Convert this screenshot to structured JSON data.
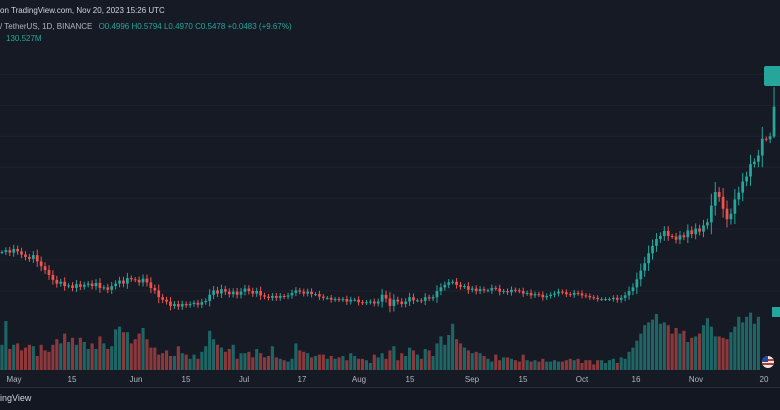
{
  "header": {
    "published": "on TradingView.com, Nov 20, 2023 15:26 UTC",
    "symbol": "/ TetherUS, 1D, BINANCE",
    "ohlc": "O0.4996 H0.5794 L0.4970 C0.5478 +0.0483 (+9.67%)",
    "volume": "130.527M"
  },
  "footer": {
    "brand": "ingView"
  },
  "colors": {
    "up": "#26a69a",
    "down": "#ef5350",
    "background": "#161a25",
    "text": "#b2b5be"
  },
  "chart_data": {
    "type": "candlestick",
    "title": "",
    "x_labels": [
      "May",
      "15",
      "Jun",
      "15",
      "Jul",
      "17",
      "Aug",
      "15",
      "Sep",
      "15",
      "Oct",
      "16",
      "Nov",
      "20"
    ],
    "ylim": [
      0.2,
      0.62
    ],
    "last": {
      "open": 0.4996,
      "high": 0.5794,
      "low": 0.497,
      "close": 0.5478
    },
    "series": [
      {
        "name": "Close",
        "values": [
          0.313,
          0.316,
          0.312,
          0.318,
          0.314,
          0.309,
          0.305,
          0.302,
          0.308,
          0.298,
          0.29,
          0.284,
          0.276,
          0.268,
          0.262,
          0.265,
          0.258,
          0.259,
          0.255,
          0.261,
          0.257,
          0.26,
          0.262,
          0.258,
          0.263,
          0.255,
          0.256,
          0.252,
          0.258,
          0.262,
          0.267,
          0.262,
          0.271,
          0.269,
          0.268,
          0.264,
          0.27,
          0.264,
          0.255,
          0.251,
          0.24,
          0.236,
          0.233,
          0.226,
          0.229,
          0.225,
          0.229,
          0.227,
          0.229,
          0.231,
          0.228,
          0.232,
          0.234,
          0.244,
          0.251,
          0.246,
          0.253,
          0.249,
          0.245,
          0.249,
          0.244,
          0.249,
          0.254,
          0.25,
          0.246,
          0.25,
          0.243,
          0.241,
          0.239,
          0.242,
          0.239,
          0.242,
          0.241,
          0.243,
          0.247,
          0.251,
          0.249,
          0.246,
          0.249,
          0.245,
          0.245,
          0.241,
          0.239,
          0.239,
          0.236,
          0.237,
          0.236,
          0.237,
          0.233,
          0.236,
          0.236,
          0.232,
          0.231,
          0.232,
          0.233,
          0.23,
          0.233,
          0.244,
          0.238,
          0.226,
          0.236,
          0.233,
          0.229,
          0.233,
          0.24,
          0.235,
          0.235,
          0.234,
          0.24,
          0.238,
          0.24,
          0.25,
          0.256,
          0.26,
          0.264,
          0.265,
          0.26,
          0.257,
          0.258,
          0.252,
          0.254,
          0.25,
          0.253,
          0.251,
          0.251,
          0.255,
          0.254,
          0.249,
          0.25,
          0.248,
          0.252,
          0.251,
          0.25,
          0.246,
          0.247,
          0.243,
          0.245,
          0.244,
          0.24,
          0.242,
          0.244,
          0.246,
          0.249,
          0.248,
          0.245,
          0.244,
          0.247,
          0.246,
          0.243,
          0.242,
          0.24,
          0.239,
          0.237,
          0.237,
          0.237,
          0.237,
          0.239,
          0.236,
          0.239,
          0.243,
          0.25,
          0.256,
          0.269,
          0.283,
          0.295,
          0.311,
          0.323,
          0.334,
          0.339,
          0.347,
          0.339,
          0.338,
          0.333,
          0.34,
          0.337,
          0.348,
          0.342,
          0.351,
          0.346,
          0.356,
          0.361,
          0.388,
          0.41,
          0.402,
          0.383,
          0.366,
          0.375,
          0.398,
          0.409,
          0.427,
          0.435,
          0.455,
          0.459,
          0.469,
          0.496,
          0.495,
          0.5,
          0.548
        ]
      },
      {
        "name": "Volume",
        "values": [
          1.8,
          3.5,
          1.5,
          1.8,
          1.9,
          1.4,
          1.6,
          1.8,
          1.7,
          1.0,
          1.8,
          1.4,
          1.3,
          1.8,
          2.2,
          1.9,
          2.6,
          2.0,
          2.3,
          1.8,
          2.3,
          2.0,
          1.5,
          1.9,
          1.5,
          2.4,
          1.9,
          1.5,
          1.7,
          2.9,
          3.1,
          2.7,
          2.7,
          1.9,
          2.2,
          2.6,
          3.0,
          2.2,
          1.6,
          1.6,
          1.1,
          1.2,
          1.4,
          1.0,
          1.0,
          1.7,
          1.2,
          1.1,
          0.8,
          1.1,
          0.8,
          1.3,
          1.7,
          2.8,
          2.2,
          1.8,
          1.6,
          1.3,
          1.5,
          1.8,
          0.8,
          1.2,
          1.2,
          1.3,
          0.9,
          1.5,
          1.2,
          0.9,
          1.0,
          1.7,
          0.9,
          0.8,
          0.7,
          0.6,
          0.8,
          1.9,
          1.4,
          1.3,
          1.2,
          0.9,
          1.0,
          1.1,
          1.1,
          0.8,
          1.0,
          0.8,
          0.9,
          1.0,
          0.7,
          1.2,
          1.0,
          0.8,
          0.8,
          0.7,
          0.5,
          1.1,
          0.9,
          1.2,
          0.8,
          1.4,
          1.7,
          0.7,
          1.2,
          1.0,
          1.6,
          1.4,
          1.1,
          0.8,
          1.5,
          1.4,
          1.0,
          1.9,
          2.4,
          1.8,
          2.5,
          3.3,
          2.2,
          1.9,
          1.6,
          1.4,
          1.2,
          1.3,
          1.2,
          1.0,
          0.8,
          0.6,
          1.1,
          0.7,
          0.9,
          0.9,
          0.8,
          0.7,
          0.6,
          1.1,
          0.7,
          0.6,
          0.7,
          0.6,
          0.8,
          0.6,
          0.6,
          0.7,
          0.6,
          0.6,
          0.7,
          0.8,
          0.7,
          0.8,
          0.5,
          0.7,
          0.7,
          0.4,
          0.7,
          0.7,
          0.5,
          0.7,
          0.8,
          0.5,
          0.9,
          0.8,
          1.3,
          1.6,
          2.1,
          2.6,
          3.2,
          3.4,
          3.6,
          4.0,
          3.3,
          3.4,
          3.2,
          2.6,
          3.0,
          2.6,
          2.8,
          2.0,
          2.3,
          2.4,
          2.6,
          3.2,
          3.7,
          3.1,
          2.4,
          2.4,
          2.3,
          2.2,
          2.7,
          3.1,
          3.8,
          3.4,
          3.8,
          4.1,
          3.3,
          3.8
        ]
      }
    ]
  }
}
